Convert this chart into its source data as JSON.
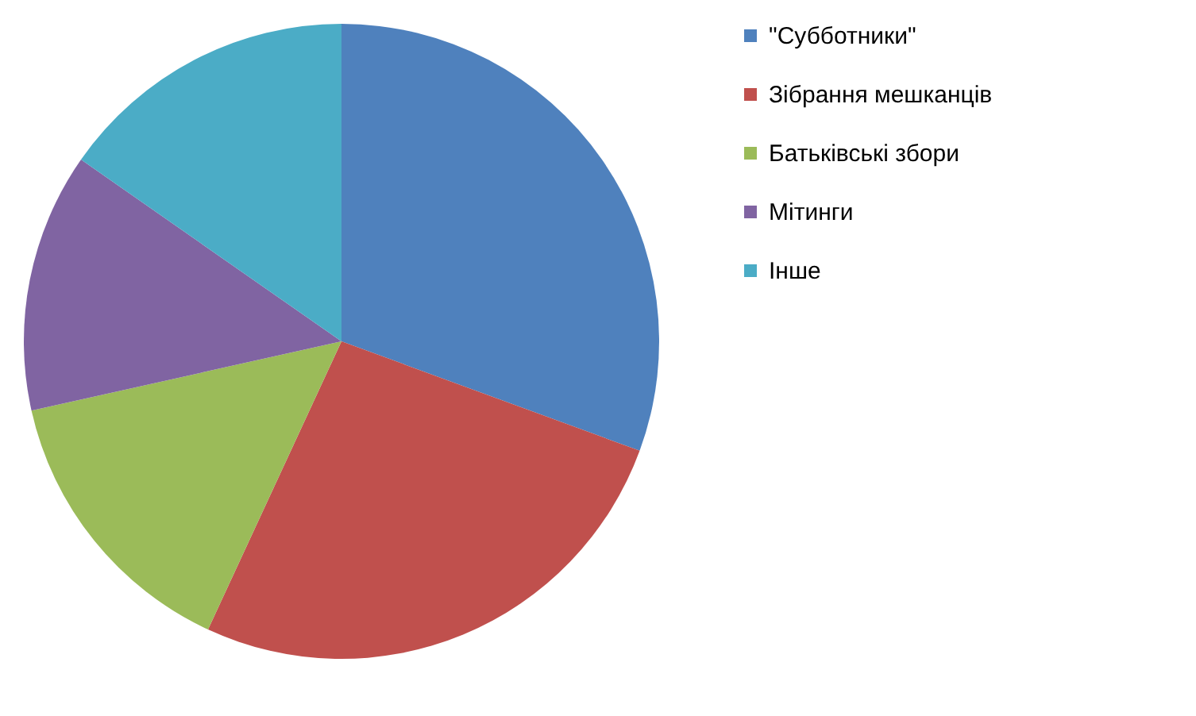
{
  "chart_data": {
    "type": "pie",
    "categories": [
      "\"Субботники\"",
      "Зібрання мешканців",
      "Батьківські збори",
      "Мітинги",
      "Інше"
    ],
    "values": [
      30.6,
      26.3,
      14.6,
      13.2,
      15.3
    ],
    "colors": [
      "#4f81bd",
      "#c0504d",
      "#9bbb59",
      "#8064a2",
      "#4bacc6"
    ],
    "legend": "right"
  }
}
